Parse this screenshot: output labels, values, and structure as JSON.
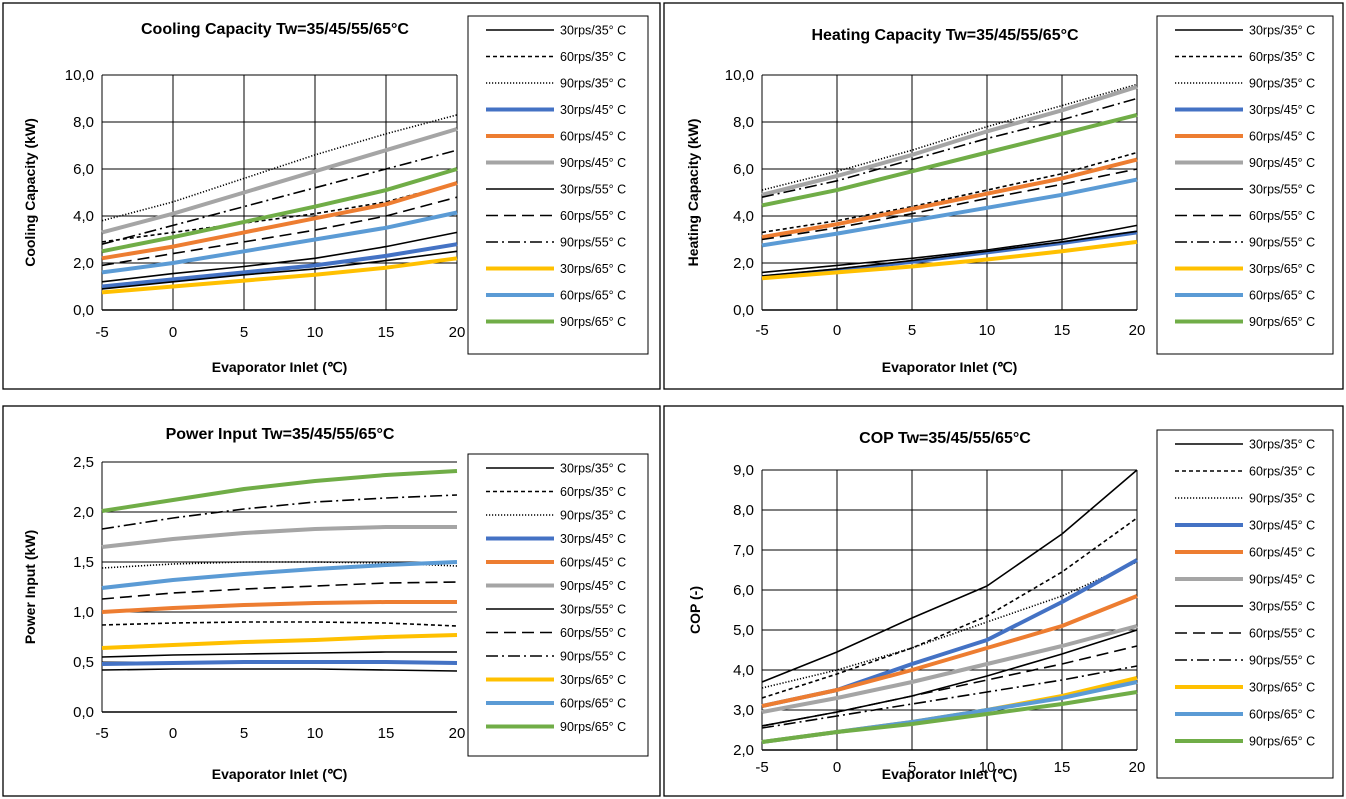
{
  "chart_data": [
    {
      "type": "line",
      "title": "Cooling Capacity  Tw=35/45/55/65°C",
      "xlabel": "Evaporator Inlet (℃)",
      "ylabel": "Cooling Capacity (kW)",
      "x": [
        -5,
        0,
        5,
        10,
        15,
        20
      ],
      "xlim": [
        -5,
        20
      ],
      "ylim": [
        0,
        10
      ],
      "ystep": 2,
      "ytick_labels": [
        "0,0",
        "2,0",
        "4,0",
        "6,0",
        "8,0",
        "10,0"
      ],
      "xtick_labels": [
        "-5",
        "0",
        "5",
        "10",
        "15",
        "20"
      ],
      "grid": true,
      "legend_position": "right",
      "series": [
        {
          "name": "30rps/35° C",
          "values": [
            1.2,
            1.55,
            1.85,
            2.2,
            2.7,
            3.3
          ]
        },
        {
          "name": "60rps/35° C",
          "values": [
            2.9,
            3.3,
            3.7,
            4.1,
            4.6,
            5.4
          ]
        },
        {
          "name": "90rps/35° C",
          "values": [
            3.8,
            4.6,
            5.6,
            6.6,
            7.5,
            8.3
          ]
        },
        {
          "name": "30rps/45° C",
          "values": [
            1.0,
            1.3,
            1.6,
            1.9,
            2.3,
            2.8
          ]
        },
        {
          "name": "60rps/45° C",
          "values": [
            2.2,
            2.7,
            3.3,
            3.9,
            4.5,
            5.4
          ]
        },
        {
          "name": "90rps/45° C",
          "values": [
            3.3,
            4.1,
            5.0,
            5.9,
            6.8,
            7.7
          ]
        },
        {
          "name": "30rps/55° C",
          "values": [
            0.9,
            1.2,
            1.5,
            1.75,
            2.1,
            2.5
          ]
        },
        {
          "name": "60rps/55° C",
          "values": [
            1.9,
            2.4,
            2.9,
            3.4,
            4.0,
            4.8
          ]
        },
        {
          "name": "90rps/55° C",
          "values": [
            2.8,
            3.6,
            4.4,
            5.2,
            6.0,
            6.8
          ]
        },
        {
          "name": "30rps/65° C",
          "values": [
            0.75,
            1.0,
            1.25,
            1.5,
            1.8,
            2.2
          ]
        },
        {
          "name": "60rps/65° C",
          "values": [
            1.6,
            2.0,
            2.5,
            3.0,
            3.5,
            4.15
          ]
        },
        {
          "name": "90rps/65° C",
          "values": [
            2.5,
            3.1,
            3.75,
            4.4,
            5.1,
            6.0
          ]
        }
      ]
    },
    {
      "type": "line",
      "title": "Heating Capacity  Tw=35/45/55/65°C",
      "xlabel": "Evaporator Inlet (℃)",
      "ylabel": "Heating Capacity (kW)",
      "x": [
        -5,
        0,
        5,
        10,
        15,
        20
      ],
      "xlim": [
        -5,
        20
      ],
      "ylim": [
        0,
        10
      ],
      "ystep": 2,
      "ytick_labels": [
        "0,0",
        "2,0",
        "4,0",
        "6,0",
        "8,0",
        "10,0"
      ],
      "xtick_labels": [
        "-5",
        "0",
        "5",
        "10",
        "15",
        "20"
      ],
      "grid": true,
      "legend_position": "right",
      "series": [
        {
          "name": "30rps/35° C",
          "values": [
            1.6,
            1.9,
            2.2,
            2.55,
            3.0,
            3.6
          ]
        },
        {
          "name": "60rps/35° C",
          "values": [
            3.3,
            3.8,
            4.4,
            5.1,
            5.8,
            6.7
          ]
        },
        {
          "name": "90rps/35° C",
          "values": [
            5.1,
            5.9,
            6.8,
            7.8,
            8.7,
            9.6
          ]
        },
        {
          "name": "30rps/45° C",
          "values": [
            1.4,
            1.7,
            2.05,
            2.45,
            2.85,
            3.3
          ]
        },
        {
          "name": "60rps/45° C",
          "values": [
            3.1,
            3.65,
            4.3,
            4.95,
            5.6,
            6.4
          ]
        },
        {
          "name": "90rps/45° C",
          "values": [
            4.9,
            5.7,
            6.6,
            7.6,
            8.5,
            9.5
          ]
        },
        {
          "name": "30rps/55° C",
          "values": [
            1.45,
            1.75,
            2.1,
            2.5,
            2.9,
            3.35
          ]
        },
        {
          "name": "60rps/55° C",
          "values": [
            3.0,
            3.5,
            4.1,
            4.75,
            5.35,
            6.0
          ]
        },
        {
          "name": "90rps/55° C",
          "values": [
            4.8,
            5.5,
            6.4,
            7.3,
            8.1,
            9.0
          ]
        },
        {
          "name": "30rps/65° C",
          "values": [
            1.35,
            1.6,
            1.85,
            2.15,
            2.5,
            2.9
          ]
        },
        {
          "name": "60rps/65° C",
          "values": [
            2.75,
            3.25,
            3.8,
            4.35,
            4.9,
            5.55
          ]
        },
        {
          "name": "90rps/65° C",
          "values": [
            4.45,
            5.1,
            5.9,
            6.7,
            7.5,
            8.3
          ]
        }
      ]
    },
    {
      "type": "line",
      "title": "Power Input Tw=35/45/55/65°C",
      "xlabel": "Evaporator Inlet (℃)",
      "ylabel": "Power Input (kW)",
      "x": [
        -5,
        0,
        5,
        10,
        15,
        20
      ],
      "xlim": [
        -5,
        20
      ],
      "ylim": [
        0,
        2.5
      ],
      "ystep": 0.5,
      "ytick_labels": [
        "0,0",
        "0,5",
        "1,0",
        "1,5",
        "2,0",
        "2,5"
      ],
      "xtick_labels": [
        "-5",
        "0",
        "5",
        "10",
        "15",
        "20"
      ],
      "grid": false,
      "legend_position": "right",
      "series": [
        {
          "name": "30rps/35° C",
          "values": [
            0.42,
            0.43,
            0.43,
            0.43,
            0.42,
            0.41
          ]
        },
        {
          "name": "60rps/35° C",
          "values": [
            0.87,
            0.89,
            0.9,
            0.9,
            0.89,
            0.86
          ]
        },
        {
          "name": "90rps/35° C",
          "values": [
            1.44,
            1.48,
            1.5,
            1.5,
            1.49,
            1.46
          ]
        },
        {
          "name": "30rps/45° C",
          "values": [
            0.48,
            0.49,
            0.5,
            0.5,
            0.5,
            0.49
          ]
        },
        {
          "name": "60rps/45° C",
          "values": [
            1.0,
            1.04,
            1.07,
            1.09,
            1.1,
            1.1
          ]
        },
        {
          "name": "90rps/45° C",
          "values": [
            1.65,
            1.73,
            1.79,
            1.83,
            1.85,
            1.85
          ]
        },
        {
          "name": "30rps/55° C",
          "values": [
            0.55,
            0.57,
            0.58,
            0.59,
            0.6,
            0.6
          ]
        },
        {
          "name": "60rps/55° C",
          "values": [
            1.13,
            1.19,
            1.23,
            1.26,
            1.29,
            1.3
          ]
        },
        {
          "name": "90rps/55° C",
          "values": [
            1.83,
            1.94,
            2.03,
            2.1,
            2.14,
            2.17
          ]
        },
        {
          "name": "30rps/65° C",
          "values": [
            0.64,
            0.67,
            0.7,
            0.72,
            0.75,
            0.77
          ]
        },
        {
          "name": "60rps/65° C",
          "values": [
            1.24,
            1.32,
            1.38,
            1.43,
            1.47,
            1.5
          ]
        },
        {
          "name": "90rps/65° C",
          "values": [
            2.01,
            2.12,
            2.23,
            2.31,
            2.37,
            2.41
          ]
        }
      ]
    },
    {
      "type": "line",
      "title": "COP  Tw=35/45/55/65°C",
      "xlabel": "Evaporator Inlet (℃)",
      "ylabel": "COP (-)",
      "x": [
        -5,
        0,
        5,
        10,
        15,
        20
      ],
      "xlim": [
        -5,
        20
      ],
      "ylim": [
        2,
        9
      ],
      "ystep": 1,
      "ytick_labels": [
        "2,0",
        "3,0",
        "4,0",
        "5,0",
        "6,0",
        "7,0",
        "8,0",
        "9,0"
      ],
      "xtick_labels": [
        "-5",
        "0",
        "5",
        "10",
        "15",
        "20"
      ],
      "grid": true,
      "legend_position": "right",
      "series": [
        {
          "name": "30rps/35° C",
          "values": [
            3.7,
            4.45,
            5.3,
            6.1,
            7.4,
            9.0
          ]
        },
        {
          "name": "60rps/35° C",
          "values": [
            3.3,
            3.9,
            4.55,
            5.35,
            6.45,
            7.8
          ]
        },
        {
          "name": "90rps/35° C",
          "values": [
            3.55,
            4.0,
            4.55,
            5.2,
            5.85,
            6.7
          ]
        },
        {
          "name": "30rps/45° C",
          "values": [
            3.1,
            3.5,
            4.15,
            4.75,
            5.7,
            6.75
          ]
        },
        {
          "name": "60rps/45° C",
          "values": [
            3.1,
            3.5,
            4.0,
            4.55,
            5.1,
            5.85
          ]
        },
        {
          "name": "90rps/45° C",
          "values": [
            2.95,
            3.3,
            3.7,
            4.15,
            4.6,
            5.1
          ]
        },
        {
          "name": "30rps/55° C",
          "values": [
            2.6,
            2.95,
            3.35,
            3.85,
            4.4,
            5.0
          ]
        },
        {
          "name": "60rps/55° C",
          "values": [
            2.6,
            2.95,
            3.35,
            3.75,
            4.15,
            4.6
          ]
        },
        {
          "name": "90rps/55° C",
          "values": [
            2.55,
            2.85,
            3.15,
            3.45,
            3.75,
            4.1
          ]
        },
        {
          "name": "30rps/65° C",
          "values": [
            2.2,
            2.45,
            2.7,
            3.0,
            3.35,
            3.8
          ]
        },
        {
          "name": "60rps/65° C",
          "values": [
            2.2,
            2.45,
            2.7,
            3.0,
            3.3,
            3.7
          ]
        },
        {
          "name": "90rps/65° C",
          "values": [
            2.2,
            2.45,
            2.65,
            2.9,
            3.15,
            3.45
          ]
        }
      ]
    }
  ],
  "series_styles": [
    {
      "color": "#000000",
      "dash": "solid",
      "width": "thin"
    },
    {
      "color": "#000000",
      "dash": "dashed-short",
      "width": "thin"
    },
    {
      "color": "#000000",
      "dash": "dotted",
      "width": "thin"
    },
    {
      "color": "#4472C4",
      "dash": "solid",
      "width": "thick"
    },
    {
      "color": "#ED7D31",
      "dash": "solid",
      "width": "thick"
    },
    {
      "color": "#A5A5A5",
      "dash": "solid",
      "width": "thick"
    },
    {
      "color": "#000000",
      "dash": "solid",
      "width": "thin"
    },
    {
      "color": "#000000",
      "dash": "dashed-long",
      "width": "thin"
    },
    {
      "color": "#000000",
      "dash": "dash-dot",
      "width": "thin"
    },
    {
      "color": "#FFC000",
      "dash": "solid",
      "width": "thick"
    },
    {
      "color": "#5B9BD5",
      "dash": "solid",
      "width": "thick"
    },
    {
      "color": "#70AD47",
      "dash": "solid",
      "width": "thick"
    }
  ]
}
